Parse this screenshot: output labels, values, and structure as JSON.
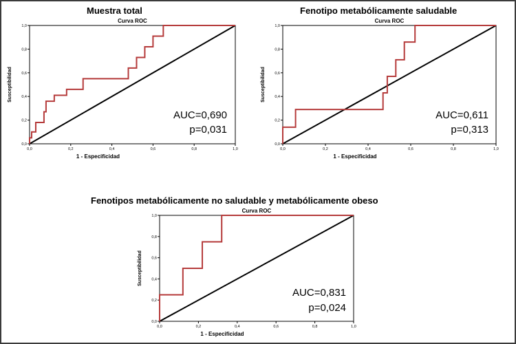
{
  "colors": {
    "curve": "#b53a3a",
    "diagonal": "#000000",
    "grid": "#000000",
    "background": "#ffffff"
  },
  "panels": [
    {
      "title": "Muestra total"
    },
    {
      "title": "Fenotipo metabólicamente saludable"
    },
    {
      "title": "Fenotipos metabólicamente no saludable y metabólicamente obeso"
    }
  ],
  "chart_data": [
    {
      "type": "line",
      "title": "Curva ROC",
      "xlabel": "1 - Especificidad",
      "ylabel": "Susceptibilidad",
      "xlim": [
        0,
        1
      ],
      "ylim": [
        0,
        1
      ],
      "xticks": [
        "0,0",
        "0,2",
        "0,4",
        "0,6",
        "0,8",
        "1,0"
      ],
      "yticks": [
        "0,0",
        "0,2",
        "0,4",
        "0,6",
        "0,8",
        "1,0"
      ],
      "grid": false,
      "annotations": [
        "AUC=0,690",
        "p=0,031"
      ],
      "series": [
        {
          "x": [
            0,
            0,
            0.01,
            0.01,
            0.03,
            0.03,
            0.07,
            0.07,
            0.08,
            0.08,
            0.12,
            0.12,
            0.18,
            0.18,
            0.26,
            0.26,
            0.48,
            0.48,
            0.52,
            0.52,
            0.56,
            0.56,
            0.6,
            0.6,
            0.65,
            0.65,
            0.7,
            1.0
          ],
          "y": [
            0,
            0.05,
            0.05,
            0.1,
            0.1,
            0.18,
            0.18,
            0.27,
            0.27,
            0.36,
            0.36,
            0.41,
            0.41,
            0.46,
            0.46,
            0.55,
            0.55,
            0.64,
            0.64,
            0.73,
            0.73,
            0.82,
            0.82,
            0.91,
            0.91,
            1.0,
            1.0,
            1.0
          ]
        },
        {
          "x": [
            0,
            1
          ],
          "y": [
            0,
            1
          ]
        }
      ]
    },
    {
      "type": "line",
      "title": "Curva ROC",
      "xlabel": "1 - Especificidad",
      "ylabel": "Susceptibilidad",
      "xlim": [
        0,
        1
      ],
      "ylim": [
        0,
        1
      ],
      "xticks": [
        "0,0",
        "0,2",
        "0,4",
        "0,6",
        "0,8",
        "1,0"
      ],
      "yticks": [
        "0,0",
        "0,2",
        "0,4",
        "0,6",
        "0,8",
        "1,0"
      ],
      "grid": false,
      "annotations": [
        "AUC=0,611",
        "p=0,313"
      ],
      "series": [
        {
          "x": [
            0,
            0,
            0.02,
            0.02,
            0.06,
            0.06,
            0.47,
            0.47,
            0.49,
            0.49,
            0.53,
            0.53,
            0.55,
            0.55,
            0.57,
            0.57,
            0.62,
            0.62,
            1.0
          ],
          "y": [
            0,
            0.14,
            0.14,
            0.14,
            0.14,
            0.29,
            0.29,
            0.43,
            0.43,
            0.57,
            0.57,
            0.71,
            0.71,
            0.71,
            0.71,
            0.86,
            0.86,
            1.0,
            1.0
          ]
        },
        {
          "x": [
            0,
            1
          ],
          "y": [
            0,
            1
          ]
        }
      ]
    },
    {
      "type": "line",
      "title": "Curva ROC",
      "xlabel": "1 - Especificidad",
      "ylabel": "Susceptibilidad",
      "xlim": [
        0,
        1
      ],
      "ylim": [
        0,
        1
      ],
      "xticks": [
        "0,0",
        "0,2",
        "0,4",
        "0,6",
        "0,8",
        "1,0"
      ],
      "yticks": [
        "0,0",
        "0,2",
        "0,4",
        "0,6",
        "0,8",
        "1,0"
      ],
      "grid": false,
      "annotations": [
        "AUC=0,831",
        "p=0,024"
      ],
      "series": [
        {
          "x": [
            0,
            0,
            0.12,
            0.12,
            0.22,
            0.22,
            0.28,
            0.28,
            0.32,
            0.32,
            1.0
          ],
          "y": [
            0,
            0.25,
            0.25,
            0.5,
            0.5,
            0.75,
            0.75,
            0.75,
            0.75,
            1.0,
            1.0
          ]
        },
        {
          "x": [
            0,
            1
          ],
          "y": [
            0,
            1
          ]
        }
      ]
    }
  ]
}
